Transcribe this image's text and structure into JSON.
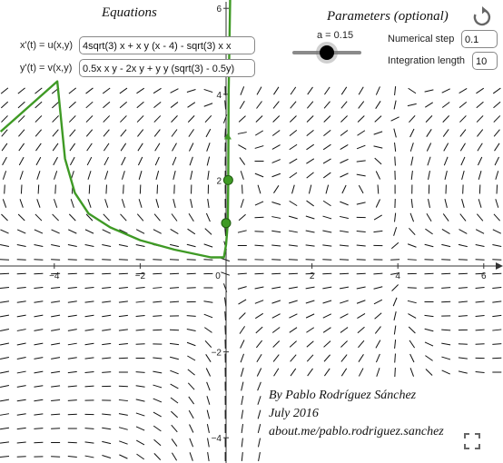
{
  "equations": {
    "title": "Equations",
    "x_label": "x'(t) = u(x,y)",
    "x_value": "4sqrt(3) x + x y (x - 4) - sqrt(3) x x",
    "y_label": "y'(t) = v(x,y)",
    "y_value": "0.5x x y - 2x y + y y (sqrt(3) - 0.5y)"
  },
  "parameters": {
    "title": "Parameters (optional)",
    "slider_label": "a = 0.15",
    "slider_value": 0.15,
    "step_label": "Numerical step",
    "step_value": "0.1",
    "length_label": "Integration length",
    "length_value": "10"
  },
  "axes": {
    "x_ticks": [
      "−4",
      "−2",
      "0",
      "2",
      "4",
      "6"
    ],
    "y_ticks": [
      "6",
      "4",
      "2",
      "−2",
      "−4"
    ]
  },
  "credits": {
    "line1": "By Pablo Rodríguez Sánchez",
    "line2": "July 2016",
    "line3": "about.me/pablo.rodriguez.sanchez"
  },
  "icons": {
    "reset": "reset-icon",
    "fullscreen": "fullscreen-icon"
  },
  "colors": {
    "trajectory": "#3f9a25",
    "field": "#111111",
    "axes": "#333333"
  }
}
